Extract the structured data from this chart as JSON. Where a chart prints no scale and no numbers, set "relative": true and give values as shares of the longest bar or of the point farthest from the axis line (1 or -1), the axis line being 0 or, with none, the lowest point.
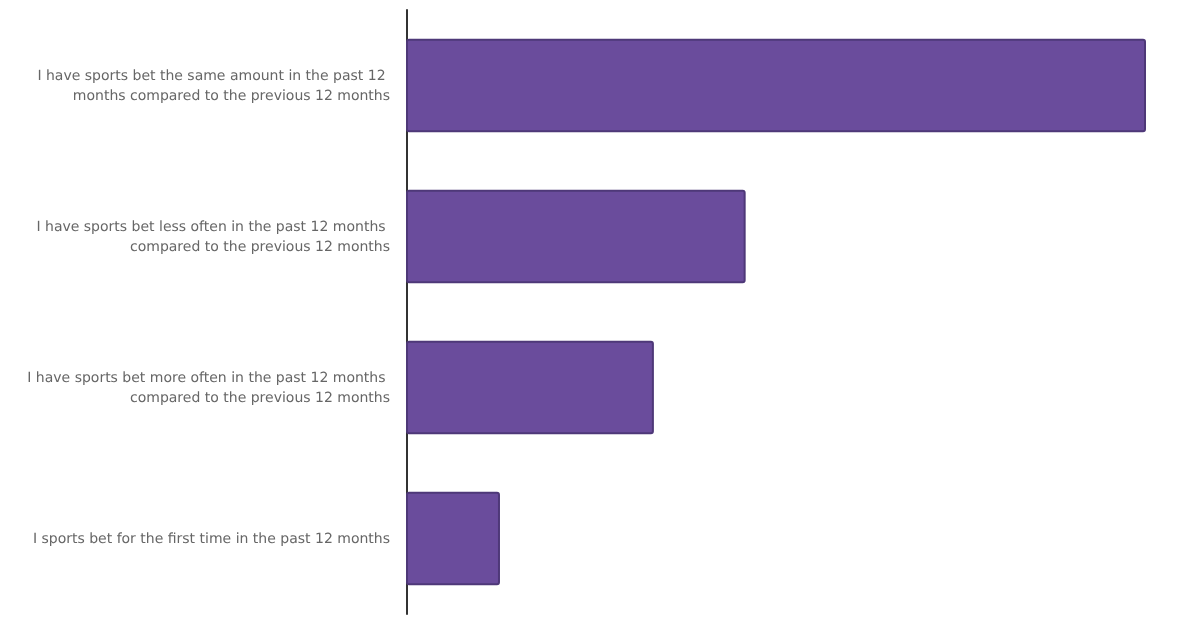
{
  "chart_data": {
    "type": "bar",
    "orientation": "horizontal",
    "relative": true,
    "color": "#6a4c9c",
    "categories": [
      "I have sports bet the same amount in the past 12 months compared to the previous 12 months",
      "I have sports bet less often in the past 12 months compared to the previous 12 months",
      "I have sports bet more often in the past 12 months compared to the previous 12 months",
      "I sports bet for the first time in the past 12 months"
    ],
    "values": [
      1,
      0.459,
      0.335,
      0.127
    ]
  }
}
